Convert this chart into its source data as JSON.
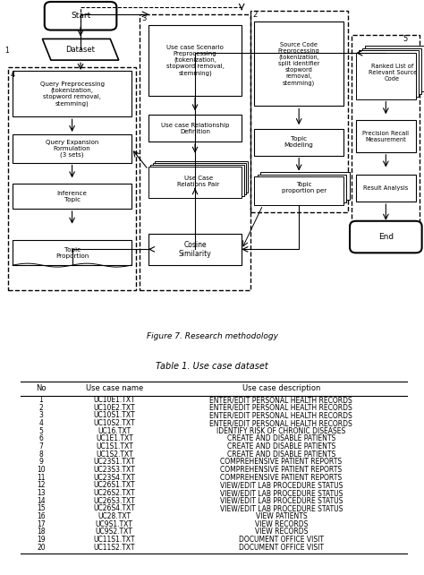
{
  "figure_caption": "Figure 7. Research methodology",
  "table_title": "Table 1. Use case dataset",
  "table_headers": [
    "No",
    "Use case name",
    "Use case description"
  ],
  "table_rows": [
    [
      "1",
      "UC10E1.TXT",
      "ENTER/EDIT PERSONAL HEALTH RECORDS"
    ],
    [
      "2",
      "UC10E2.TXT",
      "ENTER/EDIT PERSONAL HEALTH RECORDS"
    ],
    [
      "3",
      "UC10S1.TXT",
      "ENTER/EDIT PERSONAL HEALTH RECORDS"
    ],
    [
      "4",
      "UC10S2.TXT",
      "ENTER/EDIT PERSONAL HEALTH RECORDS"
    ],
    [
      "5",
      "UC16.TXT",
      "IDENTIFY RISK OF CHRONIC DISEASES"
    ],
    [
      "6",
      "UC1E1.TXT",
      "CREATE AND DISABLE PATIENTS"
    ],
    [
      "7",
      "UC1S1.TXT",
      "CREATE AND DISABLE PATIENTS"
    ],
    [
      "8",
      "UC1S2.TXT",
      "CREATE AND DISABLE PATIENTS"
    ],
    [
      "9",
      "UC23S1.TXT",
      "COMPREHENSIVE PATIENT REPORTS"
    ],
    [
      "10",
      "UC23S3.TXT",
      "COMPREHENSIVE PATIENT REPORTS"
    ],
    [
      "11",
      "UC23S4.TXT",
      "COMPREHENSIVE PATIENT REPORTS"
    ],
    [
      "12",
      "UC26S1.TXT",
      "VIEW/EDIT LAB PROCEDURE STATUS"
    ],
    [
      "13",
      "UC26S2.TXT",
      "VIEW/EDIT LAB PROCEDURE STATUS"
    ],
    [
      "14",
      "UC26S3.TXT",
      "VIEW/EDIT LAB PROCEDURE STATUS"
    ],
    [
      "15",
      "UC26S4.TXT",
      "VIEW/EDIT LAB PROCEDURE STATUS"
    ],
    [
      "16",
      "UC28.TXT",
      "VIEW PATIENTS"
    ],
    [
      "17",
      "UC9S1.TXT",
      "VIEW RECORDS"
    ],
    [
      "18",
      "UC9S2.TXT",
      "VIEW RECORDS"
    ],
    [
      "19",
      "UC11S1.TXT",
      "DOCUMENT OFFICE VISIT"
    ],
    [
      "20",
      "UC11S2.TXT",
      "DOCUMENT OFFICE VISIT"
    ]
  ]
}
